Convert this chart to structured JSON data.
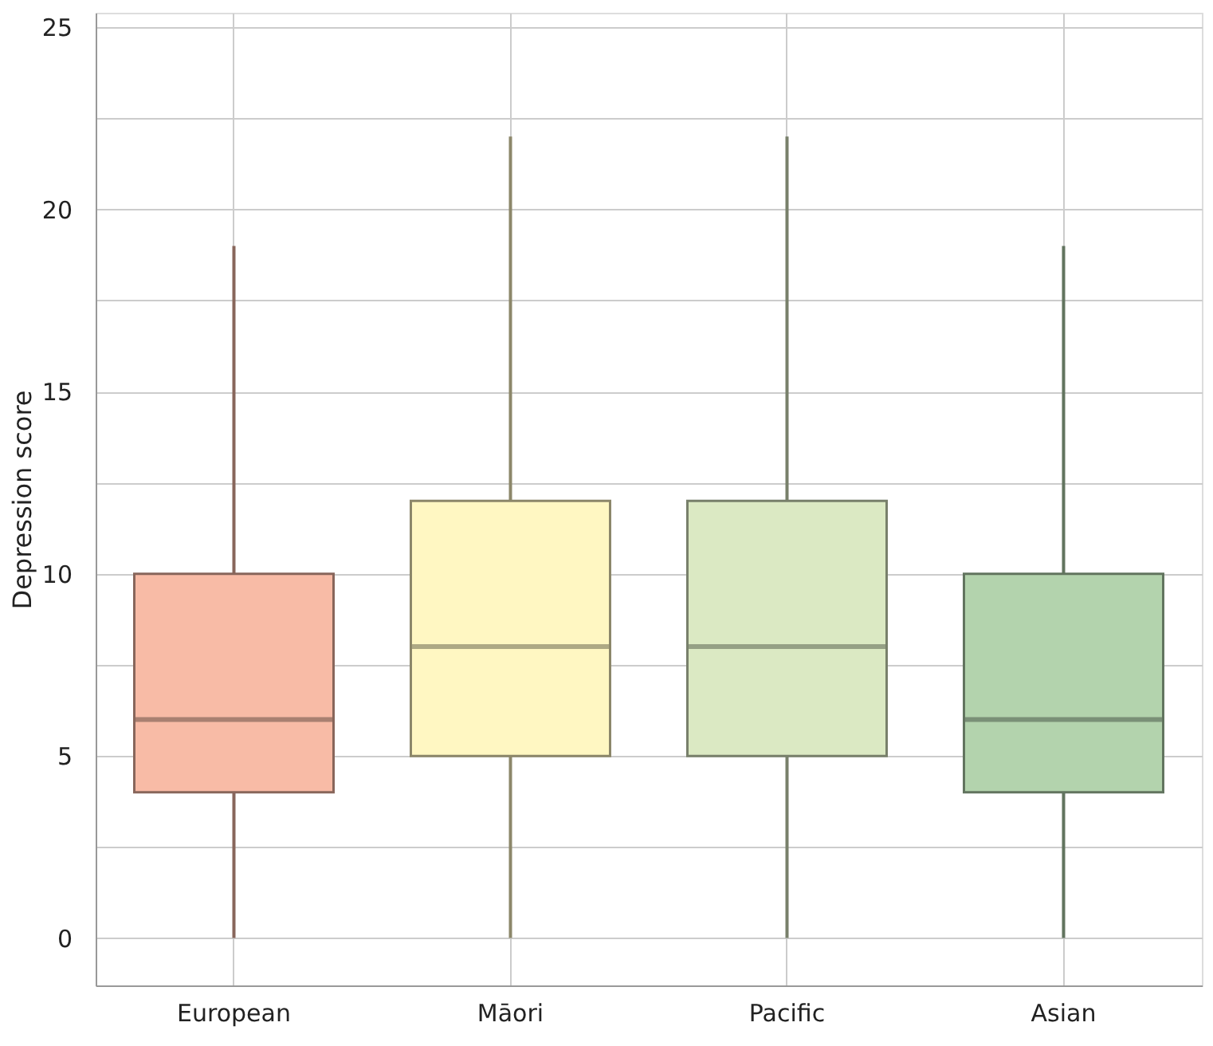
{
  "chart_data": {
    "type": "box",
    "ylabel": "Depression score",
    "categories": [
      "European",
      "Māori",
      "Pacific",
      "Asian"
    ],
    "boxes": [
      {
        "low": 0,
        "q1": 4,
        "median": 6,
        "q3": 10,
        "high": 19
      },
      {
        "low": 0,
        "q1": 5,
        "median": 8,
        "q3": 12,
        "high": 22
      },
      {
        "low": 0,
        "q1": 5,
        "median": 8,
        "q3": 12,
        "high": 22
      },
      {
        "low": 0,
        "q1": 4,
        "median": 6,
        "q3": 10,
        "high": 19
      }
    ],
    "colors": [
      "#f8bba6",
      "#fff7c2",
      "#dbe9c3",
      "#b3d3ad"
    ],
    "ylim": [
      -1.3,
      25.4
    ],
    "yticks": [
      0,
      {
        "value": 2.5,
        "label": null
      },
      5,
      {
        "value": 7.5,
        "label": null
      },
      10,
      {
        "value": 12.5,
        "label": null
      },
      15,
      {
        "value": 17.5,
        "label": null
      },
      20,
      {
        "value": 22.5,
        "label": null
      },
      25
    ],
    "grid": true
  }
}
